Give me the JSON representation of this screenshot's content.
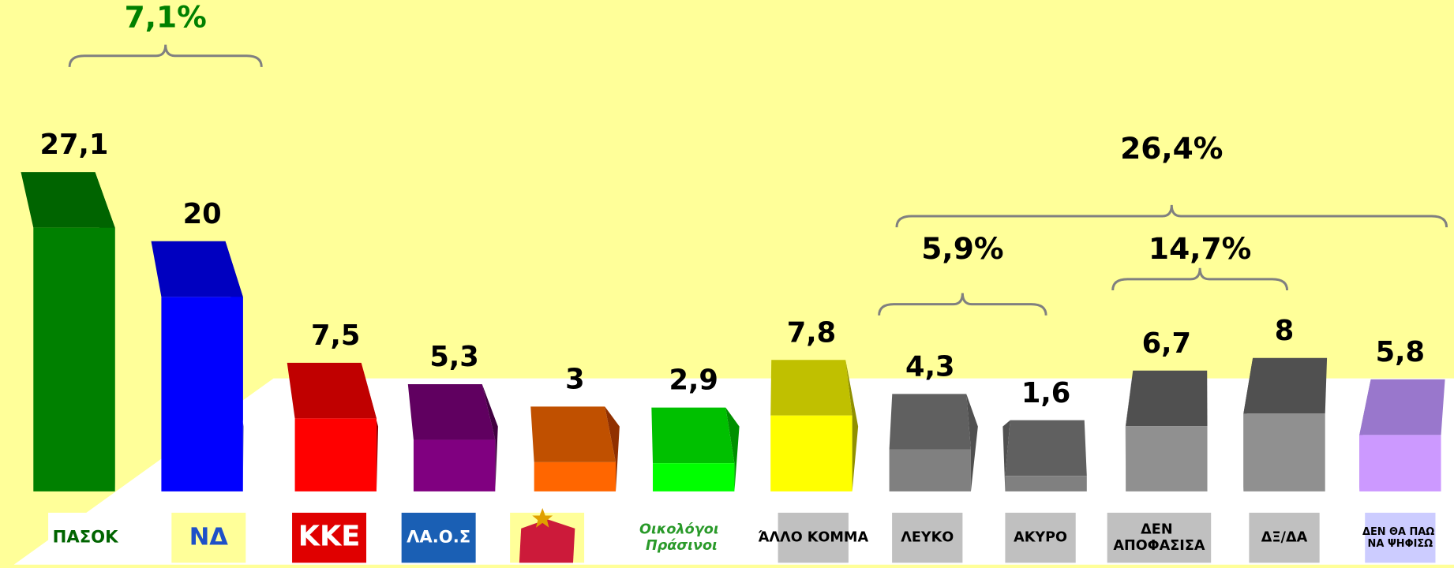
{
  "chart_data": {
    "type": "bar3d",
    "categories": [
      "ΠΑΣΟΚ",
      "ΝΔ",
      "ΚΚΕ",
      "ΛΑ.Ο.Σ",
      null,
      "Οικολόγοι Πράσινοι",
      "ΆΛΛΟ ΚΟΜΜΑ",
      "ΛΕΥΚΟ",
      "ΑΚΥΡΟ",
      "ΔΕΝ ΑΠΟΦΑΣΙΣΑ",
      "ΔΞ/ΔΑ",
      "ΔΕΝ ΘΑ ΠΑΩ ΝΑ ΨΗΦΙΣΩ"
    ],
    "values": [
      27.1,
      20,
      7.5,
      5.3,
      3,
      2.9,
      7.8,
      4.3,
      1.6,
      6.7,
      8,
      5.8
    ],
    "value_labels": [
      "27,1",
      "20",
      "7,5",
      "5,3",
      "3",
      "2,9",
      "7,8",
      "4,3",
      "1,6",
      "6,7",
      "8",
      "5,8"
    ],
    "colors": [
      [
        "#008000",
        "#006400",
        "#004000"
      ],
      [
        "#0000ff",
        "#0000c0",
        "#000090"
      ],
      [
        "#ff0000",
        "#c00000",
        "#900000"
      ],
      [
        "#800080",
        "#600060",
        "#400040"
      ],
      [
        "#ff6600",
        "#c05000",
        "#903000"
      ],
      [
        "#00ff00",
        "#00c000",
        "#009000"
      ],
      [
        "#ffff00",
        "#c0c000",
        "#909000"
      ],
      [
        "#808080",
        "#606060",
        "#505050"
      ],
      [
        "#808080",
        "#606060",
        "#505050"
      ],
      [
        "#909090",
        "#505050",
        "#404040"
      ],
      [
        "#909090",
        "#505050",
        "#404040"
      ],
      [
        "#cc99ff",
        "#9977cc",
        "#8866bb"
      ]
    ],
    "annotations": [
      "7,1%",
      "5,9%",
      "14,7%",
      "26,4%"
    ],
    "annotation_colors": [
      "#008000",
      "#000000",
      "#000000",
      "#000000"
    ]
  }
}
